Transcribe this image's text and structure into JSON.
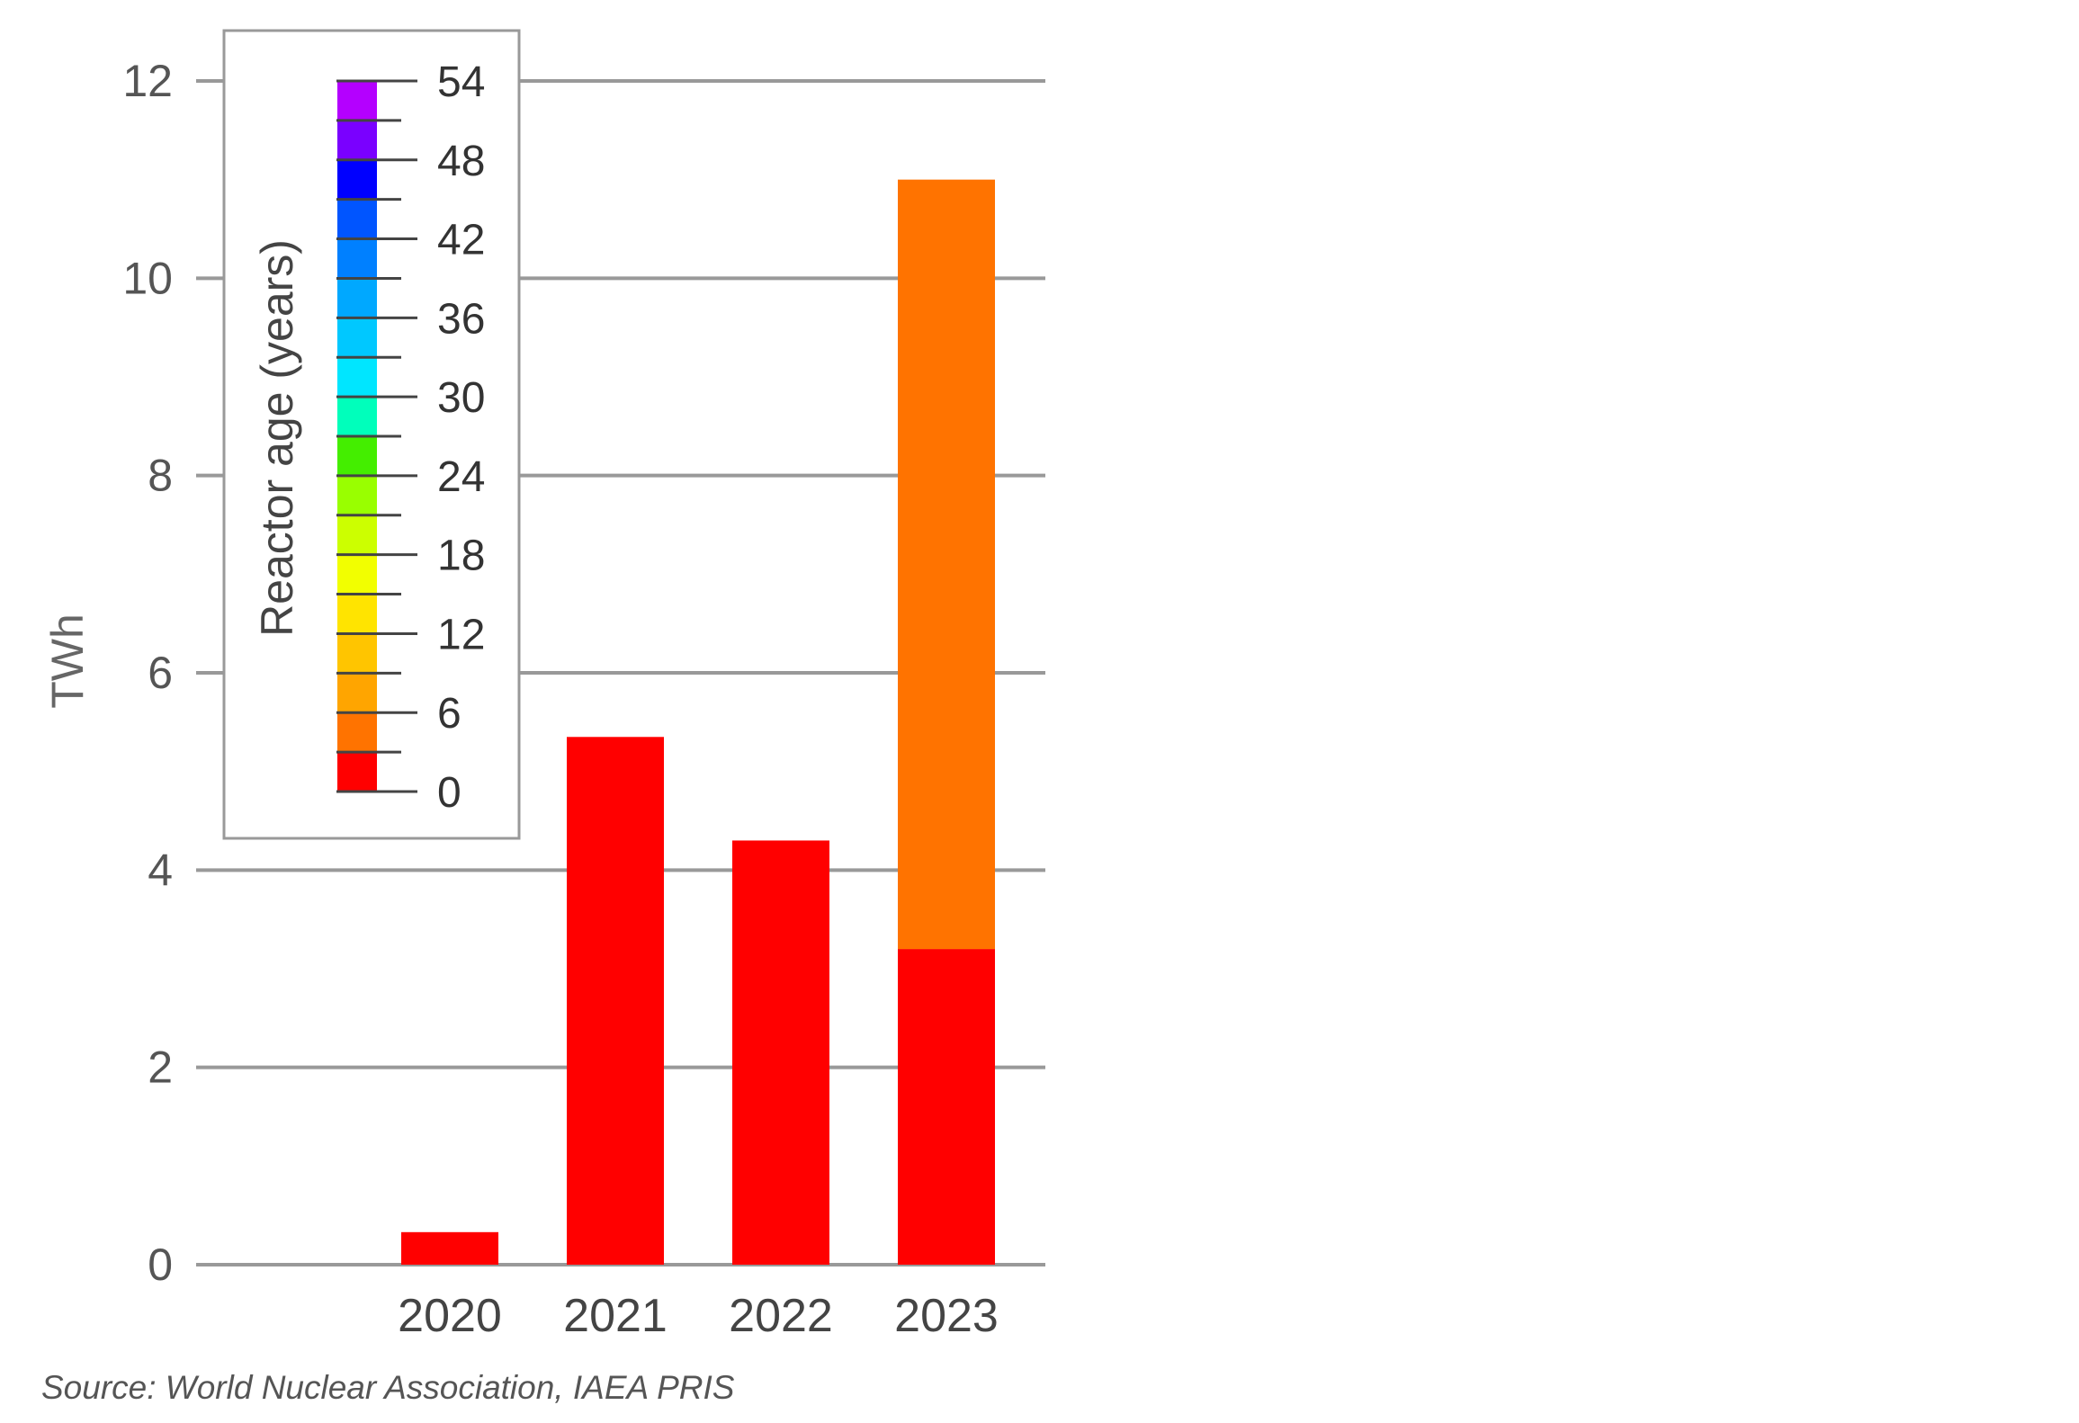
{
  "chart_data": {
    "type": "bar",
    "stacked": true,
    "categories": [
      "2020",
      "2021",
      "2022",
      "2023"
    ],
    "series": [
      {
        "age_bin": "0-3",
        "color": "#ff0000",
        "values": [
          0.33,
          5.35,
          4.3,
          3.2
        ]
      },
      {
        "age_bin": "3-6",
        "color": "#ff7300",
        "values": [
          0,
          0,
          0,
          7.8
        ]
      }
    ],
    "ylabel": "TWh",
    "ylim": [
      0,
      12
    ],
    "yticks": [
      0,
      2,
      4,
      6,
      8,
      10,
      12
    ],
    "grid": true,
    "colorbar": {
      "title": "Reactor age (years)",
      "position": "top-left",
      "min": 0,
      "max": 54,
      "major_ticks": [
        0,
        6,
        12,
        18,
        24,
        30,
        36,
        42,
        48,
        54
      ],
      "bins": [
        "#ff0000",
        "#ff7300",
        "#ffa500",
        "#ffc500",
        "#ffe400",
        "#f2ff00",
        "#ccff00",
        "#99ff00",
        "#44ee00",
        "#00ffbb",
        "#00e6ff",
        "#00c8ff",
        "#00a8ff",
        "#0080ff",
        "#0055ff",
        "#0000ff",
        "#7a00ff",
        "#b400ff"
      ]
    }
  },
  "source": "Source: World Nuclear Association, IAEA PRIS"
}
